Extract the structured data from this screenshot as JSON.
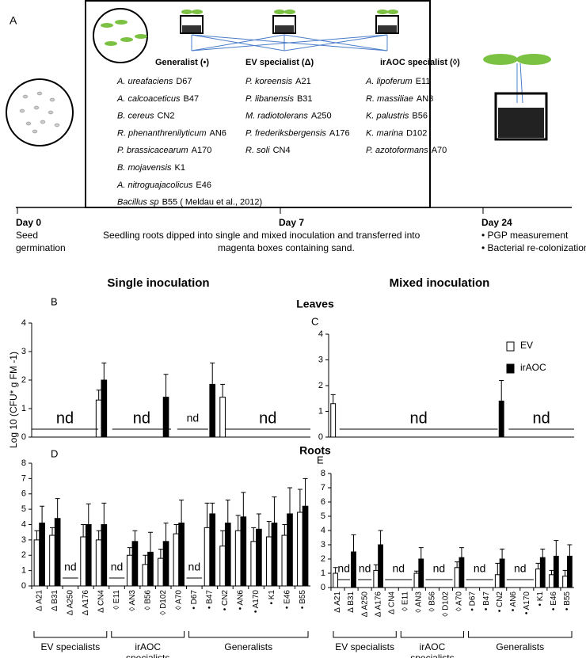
{
  "panel_label": "A",
  "diagram": {
    "groups": [
      {
        "title": "Generalist (•)",
        "strains": [
          {
            "species": "A. ureafaciens",
            "code": "D67"
          },
          {
            "species": "A. calcoaceticus",
            "code": "B47"
          },
          {
            "species": "B. cereus",
            "code": "CN2"
          },
          {
            "species": "R. phenanthrenilyticum",
            "code": "AN6"
          },
          {
            "species": "P. brassicacearum",
            "code": "A170"
          },
          {
            "species": "B. mojavensis",
            "code": "K1"
          },
          {
            "species": "A. nitroguajacolicus",
            "code": "E46"
          },
          {
            "species": "Bacillus sp",
            "code": "B55 ( Meldau et al., 2012)"
          }
        ]
      },
      {
        "title": "EV specialist (Δ)",
        "strains": [
          {
            "species": "P. koreensis",
            "code": "A21"
          },
          {
            "species": "P. libanensis",
            "code": "B31"
          },
          {
            "species": "M. radiotolerans",
            "code": "A250"
          },
          {
            "species": "P. frederiksbergensis",
            "code": "A176"
          },
          {
            "species": "R. soli",
            "code": "CN4"
          }
        ]
      },
      {
        "title": "irAOC specialist (◊)",
        "strains": [
          {
            "species": "A. lipoferum",
            "code": "E11"
          },
          {
            "species": "R.  massiliae",
            "code": "AN3"
          },
          {
            "species": "K. palustris",
            "code": "B56"
          },
          {
            "species": "K. marina",
            "code": "D102"
          },
          {
            "species": "P. azotoformans",
            "code": "A70"
          }
        ]
      }
    ]
  },
  "timeline": [
    {
      "day": "Day 0",
      "notes": [
        "Seed",
        "germination"
      ]
    },
    {
      "day": "Day 7",
      "notes": [
        "Seedling roots dipped  into single and mixed inoculation and transferred into",
        "magenta boxes containing sand."
      ]
    },
    {
      "day": "Day 24",
      "notes": [
        "• PGP measurement",
        "• Bacterial re-colonization"
      ]
    }
  ],
  "section_titles": [
    "Single inoculation",
    "Mixed inoculation"
  ],
  "row_titles": [
    "Leaves",
    "Roots"
  ],
  "y_axis_label": "Log 10 (CFU* g FM -1)",
  "chart_data": [
    {
      "type": "bar",
      "panel": "B",
      "ylim": [
        0,
        4
      ],
      "yticks": [
        0,
        1,
        2,
        3,
        4
      ],
      "series": [
        {
          "name": "EV",
          "color": "#ffffff",
          "values": [
            null,
            null,
            null,
            null,
            1.3,
            null,
            null,
            null,
            null,
            null,
            null,
            null,
            1.4,
            null,
            null,
            null,
            null,
            null
          ],
          "errors": [
            null,
            null,
            null,
            null,
            0.35,
            null,
            null,
            null,
            null,
            null,
            null,
            null,
            0.45,
            null,
            null,
            null,
            null,
            null
          ]
        },
        {
          "name": "irAOC",
          "color": "#000000",
          "values": [
            null,
            null,
            null,
            null,
            2.0,
            null,
            null,
            null,
            1.4,
            null,
            null,
            1.85,
            null,
            null,
            null,
            null,
            null,
            null
          ],
          "errors": [
            null,
            null,
            null,
            null,
            0.6,
            null,
            null,
            null,
            0.8,
            null,
            null,
            0.75,
            null,
            null,
            null,
            null,
            null,
            null
          ]
        }
      ],
      "annotations": [
        "nd",
        "nd",
        "nd",
        "nd"
      ]
    },
    {
      "type": "bar",
      "panel": "C",
      "ylim": [
        0,
        4
      ],
      "yticks": [
        0,
        1,
        2,
        3,
        4
      ],
      "legend": true,
      "series": [
        {
          "name": "EV",
          "color": "#ffffff",
          "values": [
            1.3,
            null,
            null,
            null,
            null,
            null,
            null,
            null,
            null,
            null,
            null,
            null,
            null,
            null,
            null,
            null,
            null,
            null
          ],
          "errors": [
            0.35,
            null,
            null,
            null,
            null,
            null,
            null,
            null,
            null,
            null,
            null,
            null,
            null,
            null,
            null,
            null,
            null,
            null
          ]
        },
        {
          "name": "irAOC",
          "color": "#000000",
          "values": [
            null,
            null,
            null,
            null,
            null,
            null,
            null,
            null,
            null,
            null,
            null,
            null,
            1.4,
            null,
            null,
            null,
            null,
            null
          ],
          "errors": [
            null,
            null,
            null,
            null,
            null,
            null,
            null,
            null,
            null,
            null,
            null,
            null,
            0.8,
            null,
            null,
            null,
            null,
            null
          ]
        }
      ],
      "annotations": [
        "nd",
        "nd"
      ]
    },
    {
      "type": "bar",
      "panel": "D",
      "ylim": [
        0,
        8
      ],
      "yticks": [
        0,
        1,
        2,
        3,
        4,
        5,
        6,
        7,
        8
      ],
      "categories": [
        "Δ A21",
        "Δ B31",
        "Δ A250",
        "Δ A176",
        "Δ CN4",
        "◊ E11",
        "◊ AN3",
        "◊ B56",
        "◊ D102",
        "◊ A70",
        "• D67",
        "• B47",
        "• CN2",
        "• AN6",
        "• A170",
        "• K1",
        "• E46",
        "• B55"
      ],
      "series": [
        {
          "name": "EV",
          "color": "#ffffff",
          "values": [
            3.0,
            3.3,
            null,
            3.2,
            3.0,
            null,
            2.0,
            1.4,
            1.8,
            3.4,
            null,
            3.8,
            2.6,
            3.6,
            2.9,
            3.2,
            3.3,
            4.8
          ],
          "errors": [
            0.6,
            0.5,
            null,
            0.8,
            0.6,
            null,
            0.5,
            0.6,
            0.6,
            0.6,
            null,
            1.6,
            1.0,
            1.0,
            0.9,
            1.0,
            0.7,
            1.5
          ]
        },
        {
          "name": "irAOC",
          "color": "#000000",
          "values": [
            4.1,
            4.4,
            null,
            4.0,
            4.0,
            null,
            2.9,
            2.2,
            2.9,
            4.1,
            null,
            4.7,
            4.1,
            4.5,
            3.7,
            4.1,
            4.7,
            5.2
          ],
          "errors": [
            1.1,
            1.3,
            null,
            1.35,
            1.4,
            null,
            0.7,
            1.3,
            1.2,
            1.5,
            null,
            0.7,
            1.5,
            1.6,
            1.0,
            1.7,
            1.7,
            1.8
          ]
        }
      ],
      "annotations": [
        "nd",
        "nd",
        "nd"
      ],
      "group_labels": [
        [
          "EV specialists"
        ],
        [
          "irAOC",
          "specialists"
        ],
        [
          "Generalists"
        ]
      ]
    },
    {
      "type": "bar",
      "panel": "E",
      "ylim": [
        0,
        8
      ],
      "yticks": [
        0,
        1,
        2,
        3,
        4,
        5,
        6,
        7,
        8
      ],
      "categories": [
        "Δ A21",
        "Δ B31",
        "Δ A250",
        "Δ A176",
        "Δ CN4",
        "◊ E11",
        "◊ AN3",
        "◊ B56",
        "◊ D102",
        "◊ A70",
        "• D67",
        "• B47",
        "• CN2",
        "• AN6",
        "• A170",
        "• K1",
        "• E46",
        "• B55"
      ],
      "series": [
        {
          "name": "EV",
          "color": "#ffffff",
          "values": [
            1.0,
            null,
            null,
            1.2,
            null,
            null,
            1.0,
            null,
            null,
            1.4,
            null,
            null,
            0.9,
            null,
            null,
            1.3,
            0.9,
            0.8
          ],
          "errors": [
            0.4,
            null,
            null,
            0.4,
            null,
            null,
            0.15,
            null,
            null,
            0.4,
            null,
            null,
            0.8,
            null,
            null,
            0.4,
            0.3,
            0.4
          ]
        },
        {
          "name": "irAOC",
          "color": "#000000",
          "values": [
            null,
            2.5,
            null,
            3.0,
            null,
            null,
            2.0,
            null,
            null,
            2.1,
            null,
            null,
            2.0,
            null,
            null,
            2.1,
            2.2,
            2.2
          ],
          "errors": [
            null,
            1.2,
            null,
            1.0,
            null,
            null,
            0.8,
            null,
            null,
            0.7,
            null,
            null,
            0.7,
            null,
            null,
            0.6,
            1.1,
            0.8
          ]
        }
      ],
      "annotations": [
        "nd",
        "nd",
        "nd",
        "nd",
        "nd",
        "nd",
        "nd"
      ],
      "group_labels": [
        [
          "EV specialists"
        ],
        [
          "irAOC",
          "specialists"
        ],
        [
          "Generalists"
        ]
      ]
    }
  ]
}
